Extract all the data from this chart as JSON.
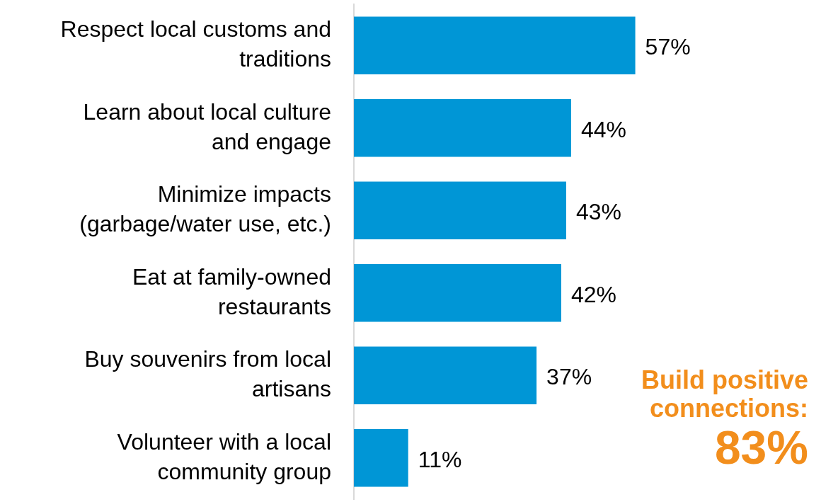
{
  "chart_data": {
    "type": "bar",
    "orientation": "horizontal",
    "categories": [
      "Respect local customs and traditions",
      "Learn about local culture and engage",
      "Minimize impacts (garbage/water use, etc.)",
      "Eat at family-owned restaurants",
      "Buy souvenirs from local artisans",
      "Volunteer with a local community group"
    ],
    "values": [
      57,
      44,
      43,
      42,
      37,
      11
    ],
    "color": "#0096d6",
    "value_labels": [
      "57%",
      "44%",
      "43%",
      "42%",
      "37%",
      "11%"
    ],
    "annotations": [
      "Build positive connections:",
      "83%"
    ],
    "legend": false
  }
}
